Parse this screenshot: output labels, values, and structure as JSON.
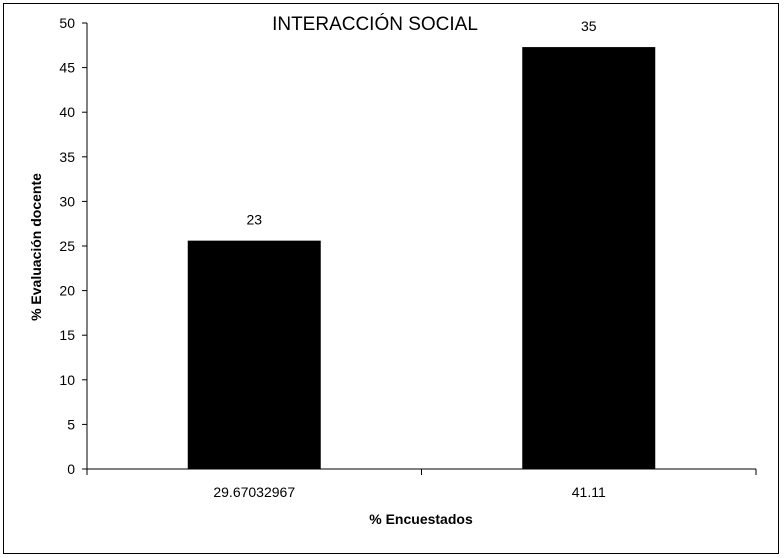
{
  "chart_data": {
    "type": "bar",
    "title": "INTERACCIÓN SOCIAL",
    "xlabel": "% Encuestados",
    "ylabel": "% Evaluación docente",
    "categories": [
      "29.67032967",
      "41.11"
    ],
    "values": [
      25.6,
      47.3
    ],
    "data_labels": [
      "23",
      "35"
    ],
    "yticks": [
      "0",
      "5",
      "10",
      "15",
      "20",
      "25",
      "30",
      "35",
      "40",
      "45",
      "50"
    ],
    "ylim": [
      0,
      50
    ],
    "grid": false,
    "legend": "none",
    "bar_color": "#000000"
  }
}
